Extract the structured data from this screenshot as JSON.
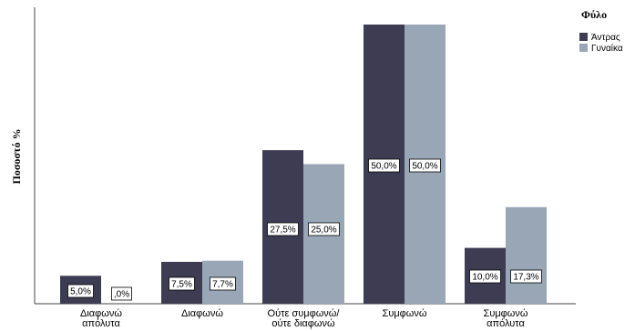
{
  "chart_data": {
    "type": "bar",
    "ylabel": "Ποσοστό %",
    "categories": [
      [
        "Διαφωνώ",
        "απόλυτα"
      ],
      [
        "Διαφωνώ"
      ],
      [
        "Ούτε συμφωνώ/",
        "ούτε διαφωνώ"
      ],
      [
        "Συμφωνώ"
      ],
      [
        "Συμφωνώ",
        "απόλυτα"
      ]
    ],
    "series": [
      {
        "name": "Άντρας",
        "color": "#3d3c52",
        "values": [
          5.0,
          7.5,
          27.5,
          50.0,
          10.0
        ],
        "labels": [
          "5,0%",
          "7,5%",
          "27,5%",
          "50,0%",
          "10,0%"
        ]
      },
      {
        "name": "Γυναίκα",
        "color": "#98a6b6",
        "values": [
          0.0,
          7.7,
          25.0,
          50.0,
          17.3
        ],
        "labels": [
          ",0%",
          "7,7%",
          "25,0%",
          "50,0%",
          "17,3%"
        ]
      }
    ],
    "ylim": [
      0,
      50
    ],
    "grid": false,
    "legend": {
      "title": "Φύλο",
      "position": "top-right"
    }
  }
}
